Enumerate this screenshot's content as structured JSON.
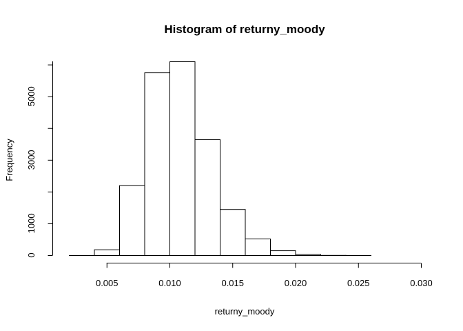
{
  "chart_data": {
    "type": "bar",
    "title": "Histogram of returny_moody",
    "xlabel": "returny_moody",
    "ylabel": "Frequency",
    "bin_edges": [
      0.002,
      0.004,
      0.006,
      0.008,
      0.01,
      0.012,
      0.014,
      0.016,
      0.018,
      0.02,
      0.022,
      0.024,
      0.026,
      0.028,
      0.03
    ],
    "values": [
      3,
      180,
      2200,
      5750,
      6100,
      3650,
      1450,
      520,
      150,
      30,
      5,
      2,
      1,
      1
    ],
    "xlim": [
      0.002,
      0.03
    ],
    "ylim": [
      0,
      6100
    ],
    "x_ticks": [
      0.005,
      0.01,
      0.015,
      0.02,
      0.025,
      0.03
    ],
    "x_tick_labels": [
      "0.005",
      "0.010",
      "0.015",
      "0.020",
      "0.025",
      "0.030"
    ],
    "y_ticks": [
      0,
      1000,
      3000,
      5000
    ],
    "y_tick_labels": [
      "0",
      "1000",
      "3000",
      "5000"
    ],
    "grid": false,
    "colors": {
      "bar_fill": "#ffffff",
      "bar_stroke": "#000000"
    }
  }
}
